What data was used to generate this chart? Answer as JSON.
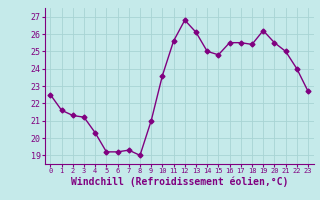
{
  "x": [
    0,
    1,
    2,
    3,
    4,
    5,
    6,
    7,
    8,
    9,
    10,
    11,
    12,
    13,
    14,
    15,
    16,
    17,
    18,
    19,
    20,
    21,
    22,
    23
  ],
  "y": [
    22.5,
    21.6,
    21.3,
    21.2,
    20.3,
    19.2,
    19.2,
    19.3,
    19.0,
    21.0,
    23.6,
    25.6,
    26.8,
    26.1,
    25.0,
    24.8,
    25.5,
    25.5,
    25.4,
    26.2,
    25.5,
    25.0,
    24.0,
    22.7
  ],
  "line_color": "#800080",
  "marker": "D",
  "markersize": 2.5,
  "linewidth": 1.0,
  "xlabel": "Windchill (Refroidissement éolien,°C)",
  "xlabel_fontsize": 7,
  "ylim": [
    18.5,
    27.5
  ],
  "yticks": [
    19,
    20,
    21,
    22,
    23,
    24,
    25,
    26,
    27
  ],
  "xticks": [
    0,
    1,
    2,
    3,
    4,
    5,
    6,
    7,
    8,
    9,
    10,
    11,
    12,
    13,
    14,
    15,
    16,
    17,
    18,
    19,
    20,
    21,
    22,
    23
  ],
  "xtick_fontsize": 5,
  "ytick_fontsize": 6,
  "background_color": "#c5eaea",
  "grid_color": "#a8d4d4"
}
